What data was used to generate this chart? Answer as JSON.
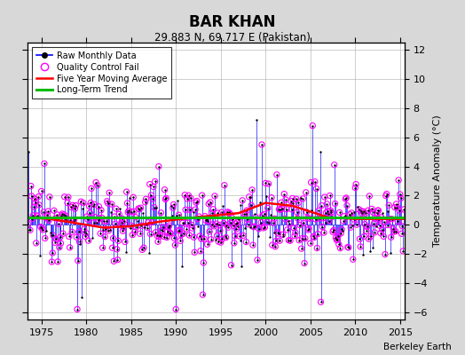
{
  "title": "BAR KHAN",
  "subtitle": "29.883 N, 69.717 E (Pakistan)",
  "credit": "Berkeley Earth",
  "ylabel": "Temperature Anomaly (°C)",
  "xlim": [
    1973.5,
    2015.5
  ],
  "ylim": [
    -6.5,
    12.5
  ],
  "yticks": [
    -6,
    -4,
    -2,
    0,
    2,
    4,
    6,
    8,
    10,
    12
  ],
  "xticks": [
    1975,
    1980,
    1985,
    1990,
    1995,
    2000,
    2005,
    2010,
    2015
  ],
  "seed": 12345,
  "n_months": 504,
  "start_year": 1973.5,
  "raw_line_color": "#0000ff",
  "raw_dot_color": "#000000",
  "qc_fail_color": "#ff00ff",
  "moving_avg_color": "#ff0000",
  "trend_color": "#00bb00",
  "bg_color": "#d8d8d8",
  "plot_bg": "#ffffff",
  "grid_color": "#aaaaaa"
}
